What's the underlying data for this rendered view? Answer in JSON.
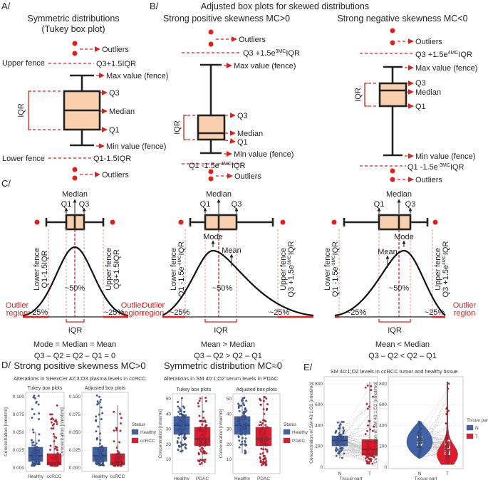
{
  "panel_labels": {
    "a": "A/",
    "b": "B/",
    "c": "C/",
    "d": "D/",
    "e": "E/"
  },
  "colors": {
    "box_fill": "#f9cfae",
    "accent_red": "#e0201b",
    "healthy_blue": "#3f62a8",
    "disease_red": "#e11b2b"
  },
  "a": {
    "title": "Symmetric distributions",
    "subtitle": "(Tukey box plot)",
    "outliers": "Outliers",
    "upper_fence": "Upper fence",
    "upper_formula": "Q3+1.5IQR",
    "max": "Max value (fence)",
    "q3": "Q3",
    "median": "Median",
    "q1": "Q1",
    "iqr": "IQR",
    "min": "Min value (fence)",
    "lower_fence": "Lower fence",
    "lower_formula": "Q1-1.5IQR"
  },
  "b": {
    "title": "Adjusted box plots for skewed distributions",
    "pos": {
      "title": "Strong positive skewness MC>0",
      "outliers": "Outliers",
      "upper": {
        "pre": "Q3 +1.5e",
        "sup": "3MC",
        "post": "IQR"
      },
      "max": "Max value (fence)",
      "q3": "Q3",
      "median": "Median",
      "q1": "Q1",
      "iqr": "IQR",
      "min": "Min value (fence)",
      "lower": {
        "pre": "Q1 -1.5e",
        "sup": "-4MC",
        "post": "IQR"
      }
    },
    "neg": {
      "title": "Strong negative skewness MC<0",
      "outliers": "Outliers",
      "upper": {
        "pre": "Q3 +1.5e",
        "sup": "4MC",
        "post": "IQR"
      },
      "max": "Max value (fence)",
      "q3": "Q3",
      "median": "Median",
      "q1": "Q1",
      "iqr": "IQR",
      "min": "Min value (fence)",
      "lower": {
        "pre": "Q1 -1.5e",
        "sup": "-3MC",
        "post": "IQR"
      }
    }
  },
  "c": {
    "sym": {
      "median": "Median",
      "q1": "Q1",
      "q3": "Q3",
      "lower_fence": "Lower fence",
      "lower_formula": "Q1-1.5IQR",
      "upper_fence": "Upper fence",
      "upper_formula": "Q3+1.5IQR",
      "center": "~50%",
      "tail": "~25%",
      "outlier_region": [
        "Outlier",
        "region"
      ],
      "iqr": "IQR",
      "eq1": "Mode = Median = Mean",
      "eq2": "Q3 – Q2 = Q2 – Q1 = 0"
    },
    "pos": {
      "median": "Median",
      "q1": "Q1",
      "q3": "Q3",
      "mode": "Mode",
      "mean": "Mean",
      "lower_fence": "Lower fence",
      "lower": {
        "pre": "Q1 -1.5e",
        "sup": "-4MC",
        "post": "IQR"
      },
      "upper_fence": "Upper fence",
      "upper": {
        "pre": "Q3 +1.5e",
        "sup": "3MC",
        "post": "IQR"
      },
      "center": "~50%",
      "tail": "~25%",
      "outlier_region": [
        "Outlier",
        "region"
      ],
      "iqr": "IQR",
      "eq1": "Mean > Median",
      "eq2": "Q3 – Q2 > Q2 – Q1"
    },
    "neg": {
      "median": "Median",
      "q1": "Q1",
      "q3": "Q3",
      "mode": "Mode",
      "mean": "Mean",
      "lower_fence": "Lower fence",
      "lower": {
        "pre": "Q1 -1.5e",
        "sup": "-3MC",
        "post": "IQR"
      },
      "upper_fence": "Upper fence",
      "upper": {
        "pre": "Q3 +1.5e",
        "sup": "4MC",
        "post": "IQR"
      },
      "center": "~50%",
      "tail": "~25%",
      "outlier_region": [
        "Outlier",
        "region"
      ],
      "iqr": "IQR",
      "eq1": "Mean < Median",
      "eq2": "Q3 – Q2 < Q2 – Q1"
    }
  },
  "d": {
    "left": {
      "heading": "Strong positive skewness MC>0",
      "subtitle": "Alterations in SHexCer 42:3;O3 plasma levels in ccRCC",
      "ylabel": "Concentration [nmol/ml]",
      "xlabel": "Status",
      "legend_title": "Status",
      "legend": [
        "Healthy",
        "ccRCC"
      ],
      "yticks": [
        "0.000",
        "0.025",
        "0.050",
        "0.075",
        "0.100"
      ],
      "ytick_values": [
        0,
        0.025,
        0.05,
        0.075,
        0.1
      ],
      "plots": [
        {
          "title": "Tukey box plots",
          "groups": [
            {
              "name": "Healthy",
              "lo": 0.003,
              "q1": 0.009,
              "median": 0.017,
              "q3": 0.029,
              "hi": 0.05,
              "max": 0.102
            },
            {
              "name": "ccRCC",
              "lo": 0.003,
              "q1": 0.004,
              "median": 0.007,
              "q3": 0.02,
              "hi": 0.044,
              "max": 0.089
            }
          ]
        },
        {
          "title": "Adjusted box plots",
          "groups": [
            {
              "name": "Healthy",
              "lo": 0.003,
              "q1": 0.009,
              "median": 0.017,
              "q3": 0.029,
              "hi": 0.095,
              "max": 0.102
            },
            {
              "name": "ccRCC",
              "lo": 0.003,
              "q1": 0.004,
              "median": 0.007,
              "q3": 0.02,
              "hi": 0.088,
              "max": 0.089
            }
          ]
        }
      ]
    },
    "right": {
      "heading": "Symmetric distribution MC≈0",
      "subtitle": "Alterations in SM 40:1;O2 serum levels in PDAC",
      "ylabel": "Concentration [nmol/ml]",
      "xlabel": "Status",
      "legend_title": "Status",
      "legend": [
        "Healthy",
        "PDAC"
      ],
      "yticks": [
        "10",
        "20",
        "30",
        "40",
        "50"
      ],
      "ytick_values": [
        10,
        20,
        30,
        40,
        50
      ],
      "plots": [
        {
          "title": "Tukey box plots",
          "groups": [
            {
              "name": "Healthy",
              "lo": 14,
              "q1": 26.5,
              "median": 32.5,
              "q3": 38.3,
              "hi": 51,
              "max": 51
            },
            {
              "name": "PDAC",
              "lo": 6,
              "q1": 19,
              "median": 23.5,
              "q3": 31.2,
              "hi": 52,
              "max": 52
            }
          ]
        },
        {
          "title": "Adjusted box plots",
          "groups": [
            {
              "name": "Healthy",
              "lo": 14,
              "q1": 26.5,
              "median": 32.5,
              "q3": 38.3,
              "hi": 51,
              "max": 51
            },
            {
              "name": "PDAC",
              "lo": 6,
              "q1": 19,
              "median": 23.5,
              "q3": 31.2,
              "hi": 52,
              "max": 52
            }
          ]
        }
      ]
    }
  },
  "e": {
    "title": "SM 40:1;O2 levels in ccRCC tumor and healthy tissue",
    "ylabel": "Concentration of SM 40:1;O2 [nmol/mg]",
    "xlabel": "Tissue part",
    "legend_title": "Tissue part",
    "legend": [
      "N",
      "T"
    ],
    "yticks": [
      "0",
      "200",
      "400",
      "600",
      "800"
    ],
    "ytick_values": [
      0,
      200,
      400,
      600,
      800
    ],
    "groups": [
      {
        "name": "N",
        "lo": 85,
        "q1": 205,
        "median": 258,
        "q3": 300,
        "hi": 440
      },
      {
        "name": "T",
        "lo": 25,
        "q1": 115,
        "median": 170,
        "q3": 265,
        "hi": 820
      }
    ]
  }
}
